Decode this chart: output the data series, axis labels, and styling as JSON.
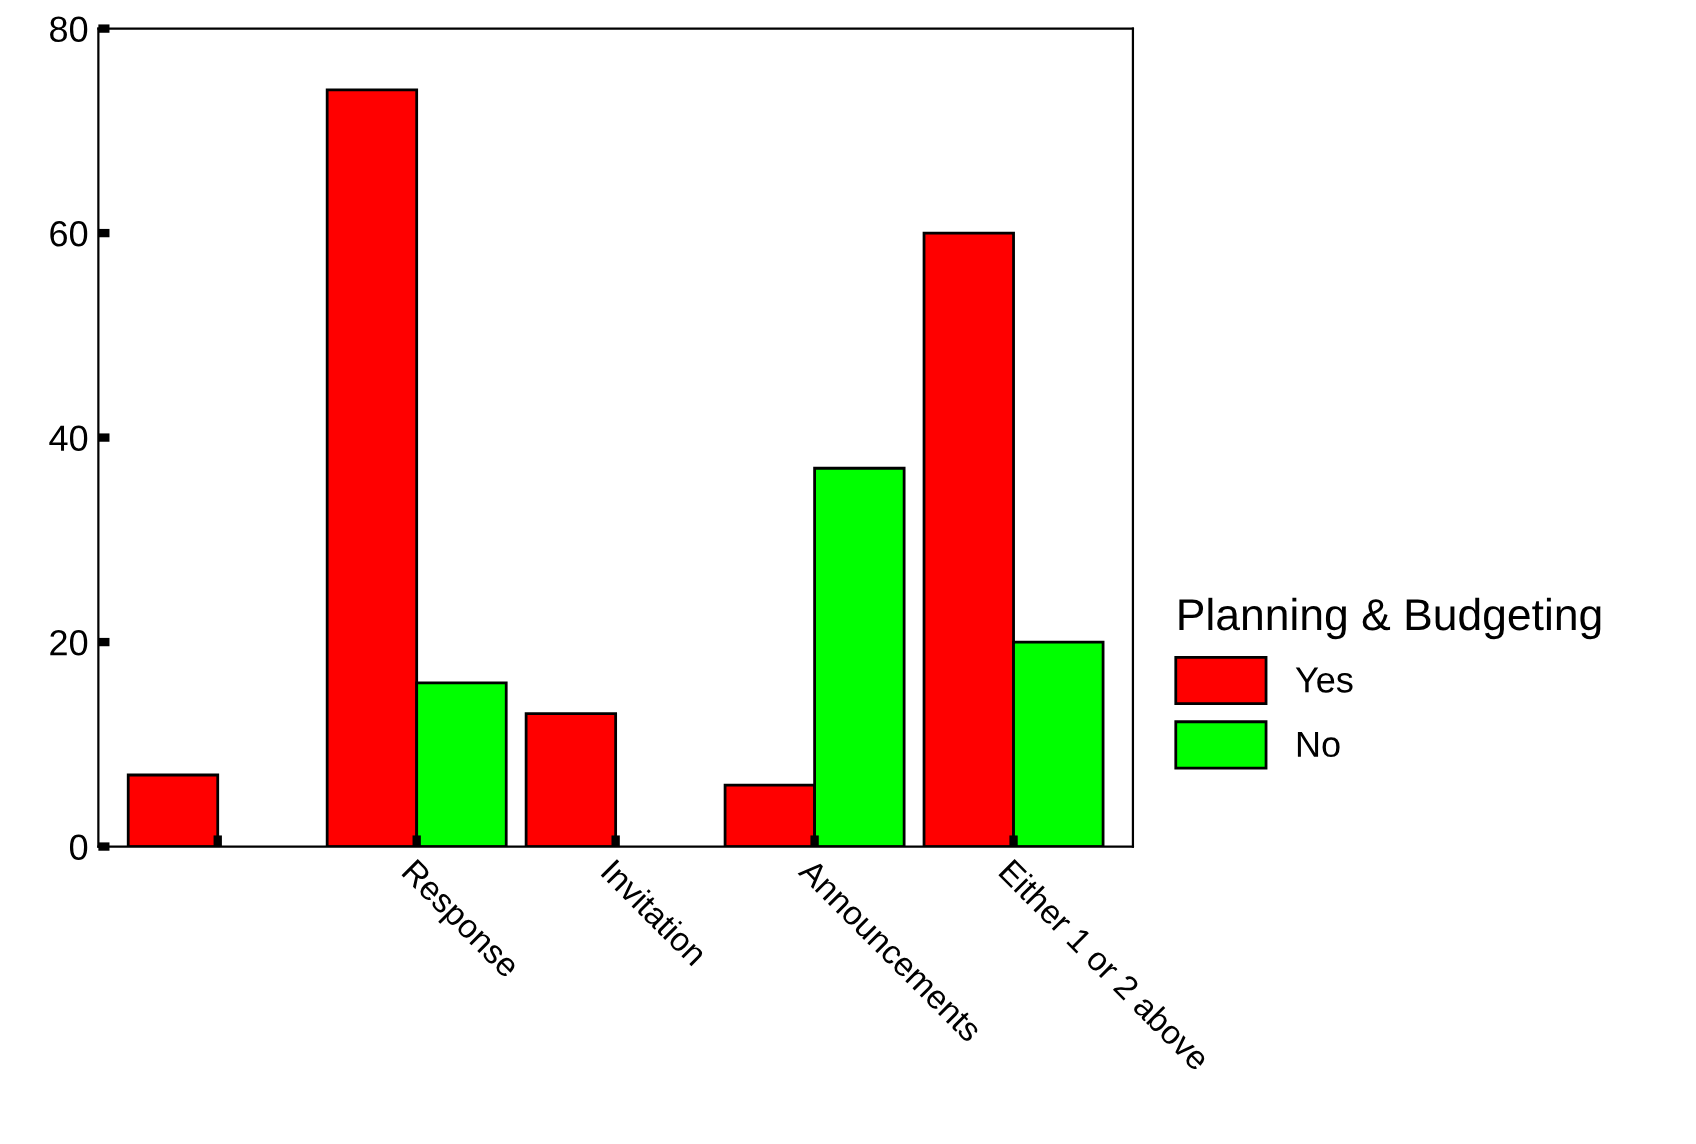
{
  "chart_data": {
    "type": "bar",
    "legend_title": "Planning & Budgeting",
    "legend": "right",
    "categories": [
      null,
      "Response",
      "Invitation",
      "Announcements",
      "Either 1 or 2 above"
    ],
    "series": [
      {
        "name": "Yes",
        "color": "#ff0000",
        "values": [
          7,
          74,
          13,
          6,
          60
        ]
      },
      {
        "name": "No",
        "color": "#00ff00",
        "values": [
          null,
          16,
          null,
          37,
          20
        ]
      }
    ],
    "ylim": [
      0,
      80
    ],
    "yticks": [
      0,
      20,
      40,
      60,
      80
    ],
    "grid": false
  }
}
